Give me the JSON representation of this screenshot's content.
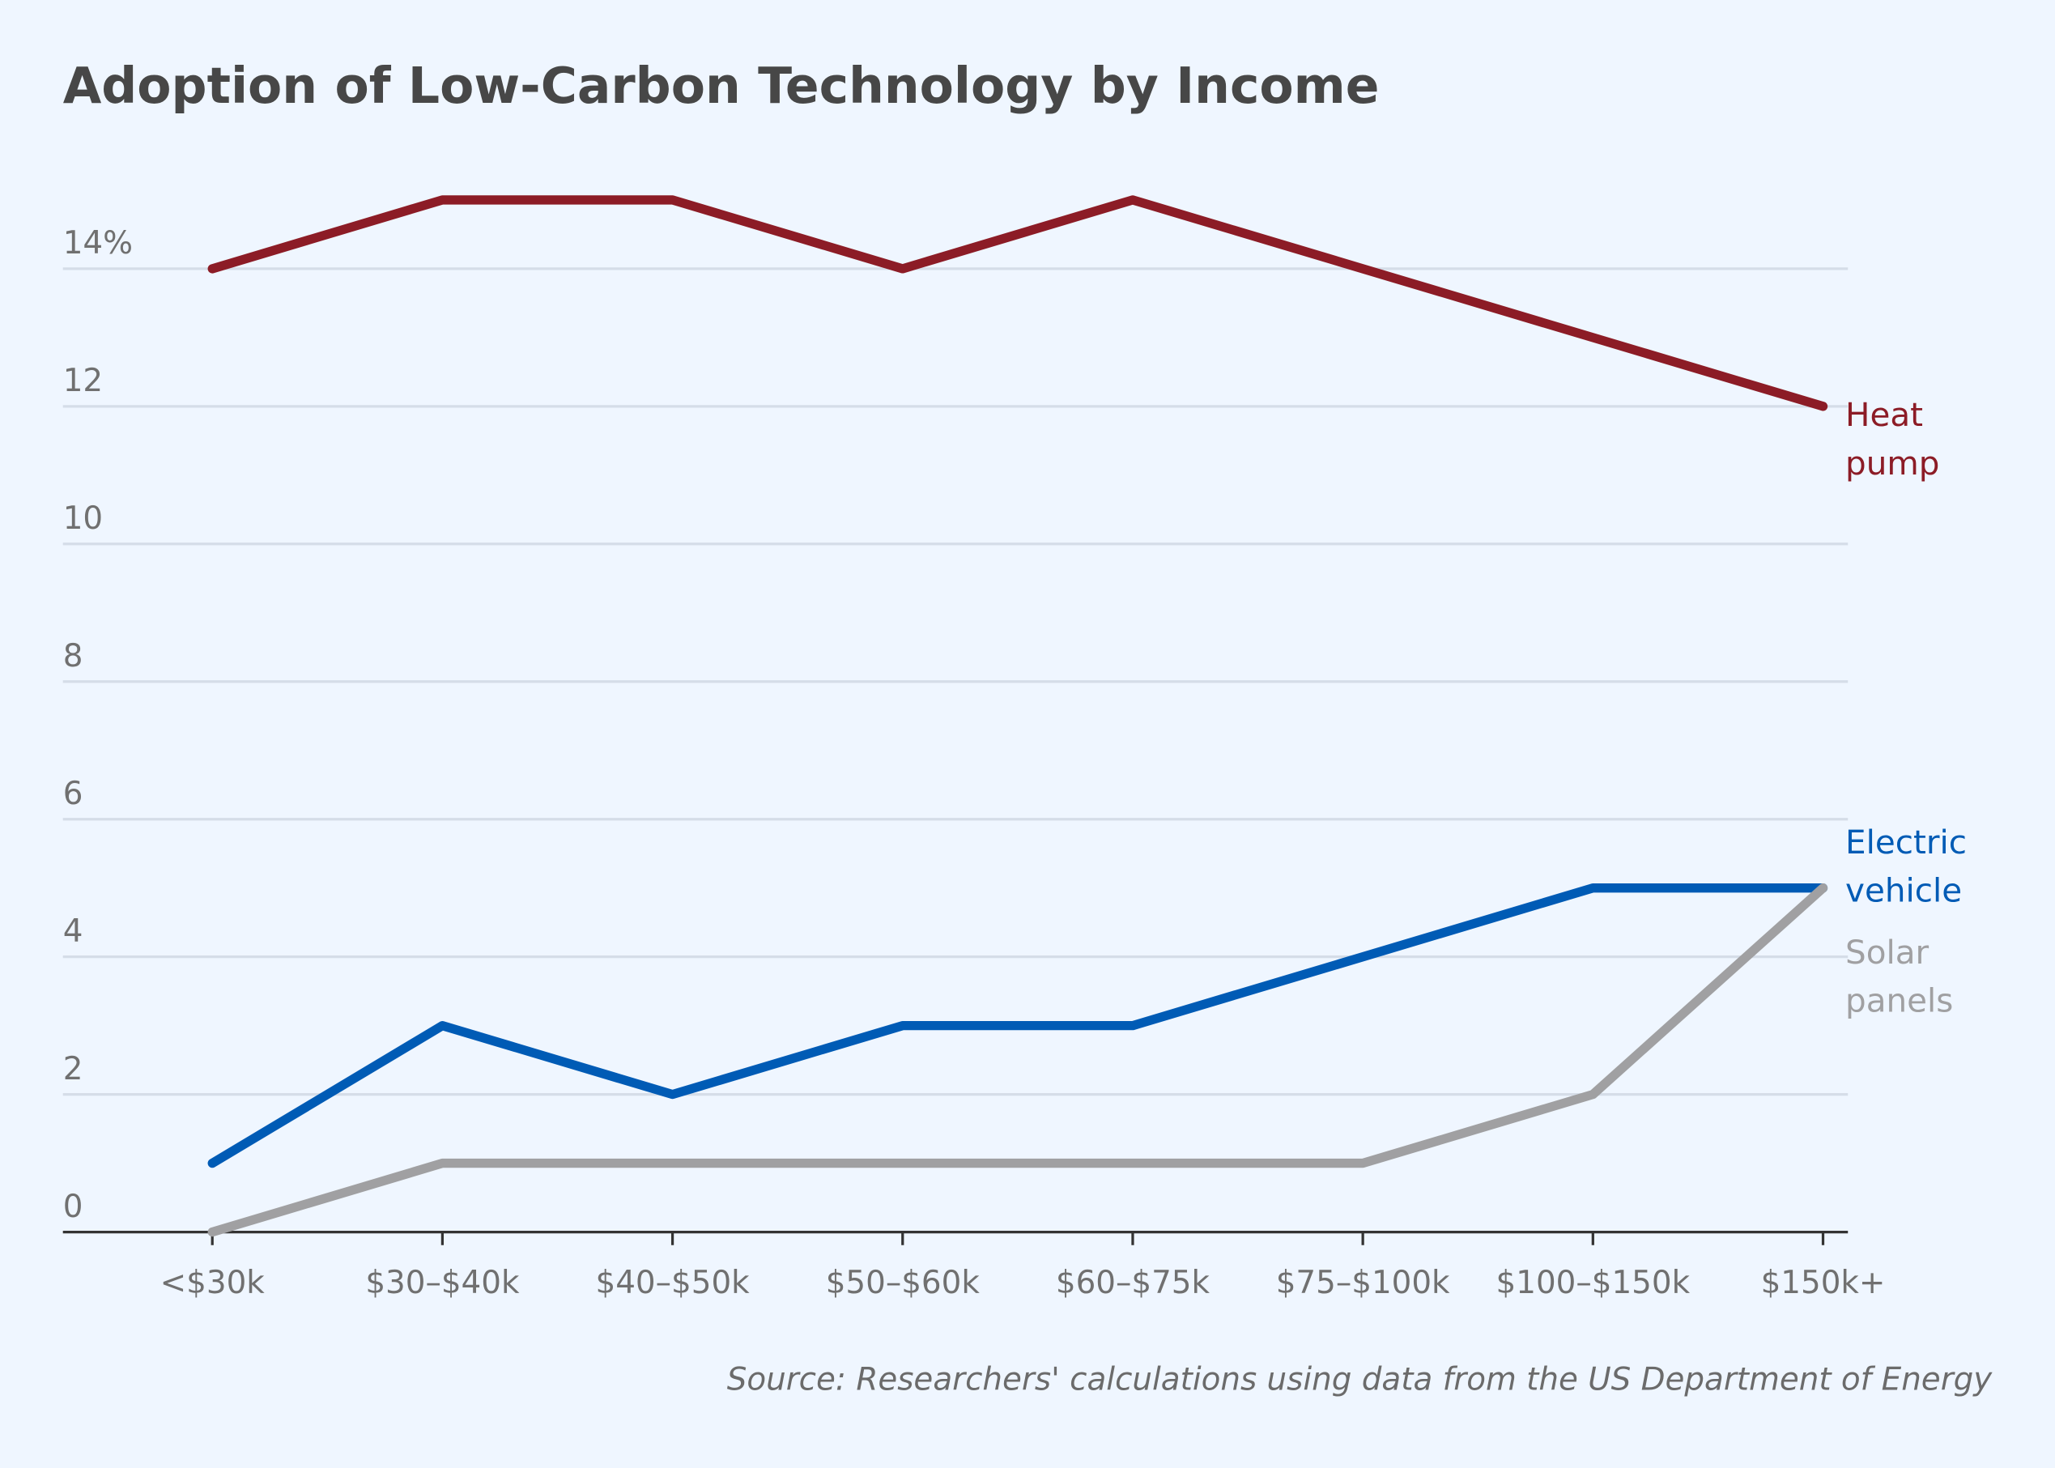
{
  "chart_data": {
    "type": "line",
    "title": "Adoption of Low-Carbon Technology by Income",
    "source": "Source: Researchers' calculations using data from the US Department of Energy",
    "categories": [
      "<$30k",
      "$30–$40k",
      "$40–$50k",
      "$50–$60k",
      "$60–$75k",
      "$75–$100k",
      "$100–$150k",
      "$150k+"
    ],
    "series": [
      {
        "name": "Heat pump",
        "color": "#8c1c26",
        "values": [
          14,
          15,
          15,
          14,
          15,
          14,
          13,
          12
        ]
      },
      {
        "name": "Electric vehicle",
        "color": "#005bb5",
        "values": [
          1,
          3,
          2,
          3,
          3,
          4,
          5,
          5
        ]
      },
      {
        "name": "Solar panels",
        "color": "#a0a0a2",
        "values": [
          0,
          1,
          1,
          1,
          1,
          1,
          2,
          5
        ]
      }
    ],
    "ylim": [
      0,
      15
    ],
    "yticks": [
      0,
      2,
      4,
      6,
      8,
      10,
      12,
      {
        "value": 14,
        "label": "14%"
      }
    ],
    "grid": true
  }
}
